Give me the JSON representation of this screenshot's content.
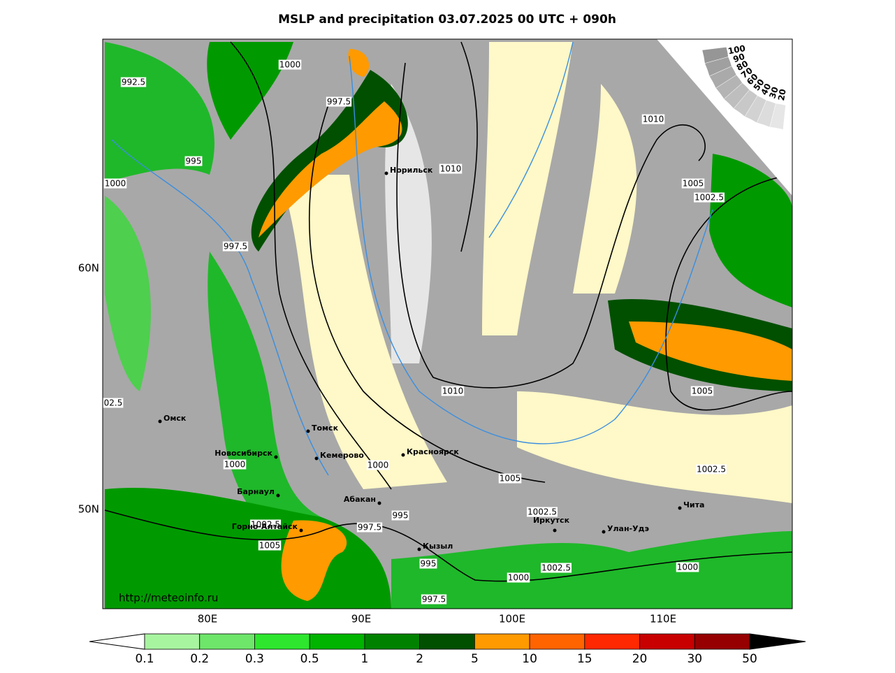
{
  "title": "MSLP and precipitation 03.07.2025 00 UTC + 090h",
  "lon_labels": [
    "80E",
    "90E",
    "100E",
    "110E"
  ],
  "lat_labels": [
    "60N",
    "50N"
  ],
  "cities": [
    "Норильск",
    "Томск",
    "Кемерово",
    "Новосибирск",
    "Омск",
    "Барнаул",
    "Горно-Алтайск",
    "Абакан",
    "Красноярск",
    "Кызыл",
    "Иркутск",
    "Улан-Удэ",
    "Чита"
  ],
  "isobar_labels": [
    "1000",
    "992.5",
    "997.5",
    "995",
    "1000",
    "1010",
    "1010",
    "1005",
    "1002.5",
    "997.5",
    "1010",
    "1005",
    "02.5",
    "1000",
    "1000",
    "1005",
    "1002.5",
    "1002.5",
    "1002.5",
    "997.5",
    "995",
    "1005",
    "995",
    "1002.5",
    "1000",
    "1000",
    "997.5"
  ],
  "url": "http://meteoinfo.ru",
  "cloud_scale": [
    100,
    90,
    80,
    70,
    60,
    50,
    40,
    30,
    20
  ],
  "colorbar": {
    "levels": [
      0.1,
      0.2,
      0.3,
      0.5,
      1,
      2,
      5,
      10,
      15,
      20,
      30,
      50
    ],
    "colors": [
      "#a8f5a0",
      "#6ee66a",
      "#2ee62e",
      "#00b400",
      "#008200",
      "#005000",
      "#ff9a00",
      "#ff6400",
      "#ff2800",
      "#c80000",
      "#960000"
    ],
    "under_color": "#ffffff",
    "over_color": "#000000"
  }
}
